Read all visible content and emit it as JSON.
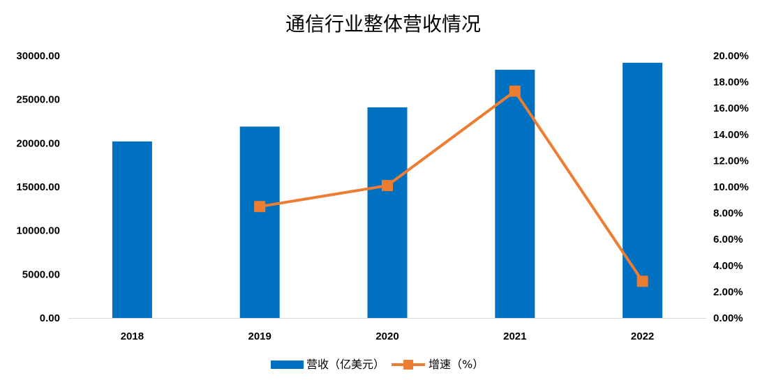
{
  "chart_data": {
    "type": "bar+line",
    "title": "通信行业整体营收情况",
    "categories": [
      "2018",
      "2019",
      "2020",
      "2021",
      "2022"
    ],
    "series": [
      {
        "name": "营收（亿美元）",
        "type": "bar",
        "axis": "left",
        "color": "#0070C0",
        "values": [
          20200,
          21900,
          24100,
          28400,
          29200
        ]
      },
      {
        "name": "增速（%）",
        "type": "line",
        "axis": "right",
        "color": "#ED7D31",
        "values": [
          null,
          0.085,
          0.101,
          0.173,
          0.028
        ]
      }
    ],
    "y_left": {
      "ylim": [
        0,
        30000
      ],
      "ticks": [
        "0.00",
        "5000.00",
        "10000.00",
        "15000.00",
        "20000.00",
        "25000.00",
        "30000.00"
      ]
    },
    "y_right": {
      "ylim": [
        0,
        0.2
      ],
      "ticks": [
        "0.00%",
        "2.00%",
        "4.00%",
        "6.00%",
        "8.00%",
        "10.00%",
        "12.00%",
        "14.00%",
        "16.00%",
        "18.00%",
        "20.00%"
      ]
    },
    "legend": {
      "position": "bottom"
    },
    "grid": false
  }
}
